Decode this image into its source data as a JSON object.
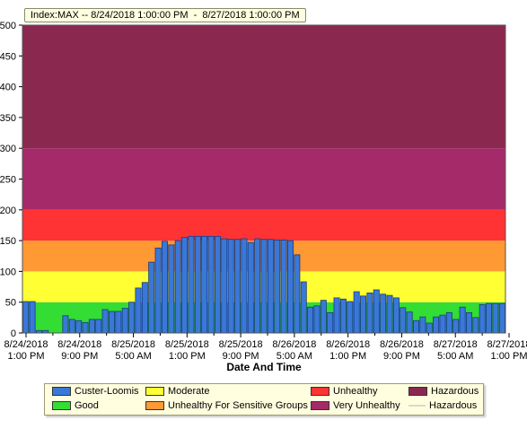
{
  "title": "Index:MAX -- 8/24/2018 1:00:00 PM  -  8/27/2018 1:00:00 PM",
  "chart_data": {
    "type": "bar",
    "xlabel": "Date And Time",
    "ylabel": "",
    "ylim": [
      0,
      500
    ],
    "yticks": [
      0,
      50,
      100,
      150,
      200,
      250,
      300,
      350,
      400,
      450,
      500
    ],
    "xtick_labels": [
      [
        "8/24/2018",
        "1:00 PM"
      ],
      [
        "8/24/2018",
        "9:00 PM"
      ],
      [
        "8/25/2018",
        "5:00 AM"
      ],
      [
        "8/25/2018",
        "1:00 PM"
      ],
      [
        "8/25/2018",
        "9:00 PM"
      ],
      [
        "8/26/2018",
        "5:00 AM"
      ],
      [
        "8/26/2018",
        "1:00 PM"
      ],
      [
        "8/26/2018",
        "9:00 PM"
      ],
      [
        "8/27/2018",
        "5:00 AM"
      ],
      [
        "8/27/2018",
        "1:00 PM"
      ]
    ],
    "bands": [
      {
        "name": "Good",
        "from": 0,
        "to": 50,
        "color": "#33dd33"
      },
      {
        "name": "Moderate",
        "from": 50,
        "to": 100,
        "color": "#ffff33"
      },
      {
        "name": "Unhealthy For Sensitive Groups",
        "from": 100,
        "to": 150,
        "color": "#ff9933"
      },
      {
        "name": "Unhealthy",
        "from": 150,
        "to": 200,
        "color": "#ff3333"
      },
      {
        "name": "Very Unhealthy",
        "from": 200,
        "to": 300,
        "color": "#a52a6a"
      },
      {
        "name": "Hazardous",
        "from": 300,
        "to": 500,
        "color": "#8b2850"
      }
    ],
    "series": [
      {
        "name": "Custer-Loomis",
        "color": "#3a78d8",
        "values": [
          51,
          51,
          4,
          4,
          null,
          null,
          28,
          22,
          20,
          17,
          22,
          22,
          38,
          35,
          35,
          40,
          50,
          73,
          82,
          115,
          138,
          149,
          143,
          150,
          155,
          157,
          157,
          157,
          157,
          157,
          153,
          152,
          152,
          153,
          147,
          153,
          152,
          152,
          151,
          151,
          150,
          127,
          83,
          42,
          44,
          53,
          33,
          57,
          55,
          51,
          67,
          60,
          65,
          70,
          63,
          61,
          57,
          41,
          34,
          20,
          26,
          16,
          26,
          29,
          33,
          22,
          42,
          33,
          25,
          46,
          48,
          48,
          48
        ]
      }
    ]
  },
  "legend": {
    "items": [
      {
        "label": "Custer-Loomis",
        "color": "#3a78d8",
        "kind": "box"
      },
      {
        "label": "Moderate",
        "color": "#ffff33",
        "kind": "box"
      },
      {
        "label": "Unhealthy",
        "color": "#ff3333",
        "kind": "box"
      },
      {
        "label": "Hazardous",
        "color": "#8b2850",
        "kind": "box"
      },
      {
        "label": "Good",
        "color": "#33dd33",
        "kind": "box"
      },
      {
        "label": "Unhealthy For Sensitive Groups",
        "color": "#ff9933",
        "kind": "box"
      },
      {
        "label": "Very Unhealthy",
        "color": "#a52a6a",
        "kind": "box"
      },
      {
        "label": "Hazardous",
        "color": "#d8d8d0",
        "kind": "line"
      }
    ]
  }
}
